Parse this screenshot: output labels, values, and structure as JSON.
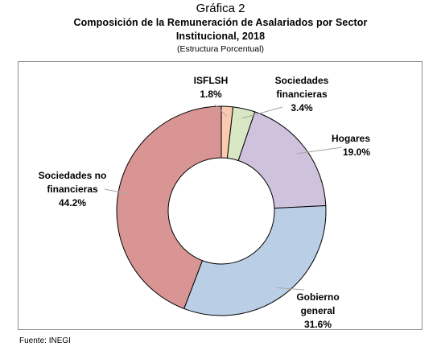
{
  "figure": {
    "label": "Gráfica 2",
    "title_line1": "Composición de la Remuneración de Asalariados por Sector",
    "title_line2": "Institucional, 2018",
    "subtitle": "(Estructura Porcentual)",
    "source": "Fuente: INEGI"
  },
  "chart_data": {
    "type": "pie",
    "title": "Composición de la Remuneración de Asalariados por Sector Institucional, 2018",
    "subtitle": "(Estructura Porcentual)",
    "donut": true,
    "unit": "%",
    "slices": [
      {
        "name": "ISFLSH",
        "value": 1.8,
        "value_label": "1.8%",
        "label_lines": [
          "ISFLSH"
        ],
        "color": "#f9c9b0"
      },
      {
        "name": "Sociedades financieras",
        "value": 3.4,
        "value_label": "3.4%",
        "label_lines": [
          "Sociedades",
          "financieras"
        ],
        "color": "#d9e8c4"
      },
      {
        "name": "Hogares",
        "value": 19.0,
        "value_label": "19.0%",
        "label_lines": [
          "Hogares"
        ],
        "color": "#cfc2dd"
      },
      {
        "name": "Gobierno general",
        "value": 31.6,
        "value_label": "31.6%",
        "label_lines": [
          "Gobierno",
          "general"
        ],
        "color": "#bacfe6"
      },
      {
        "name": "Sociedades no financieras",
        "value": 44.2,
        "value_label": "44.2%",
        "label_lines": [
          "Sociedades no",
          "financieras"
        ],
        "color": "#d99593"
      }
    ]
  }
}
